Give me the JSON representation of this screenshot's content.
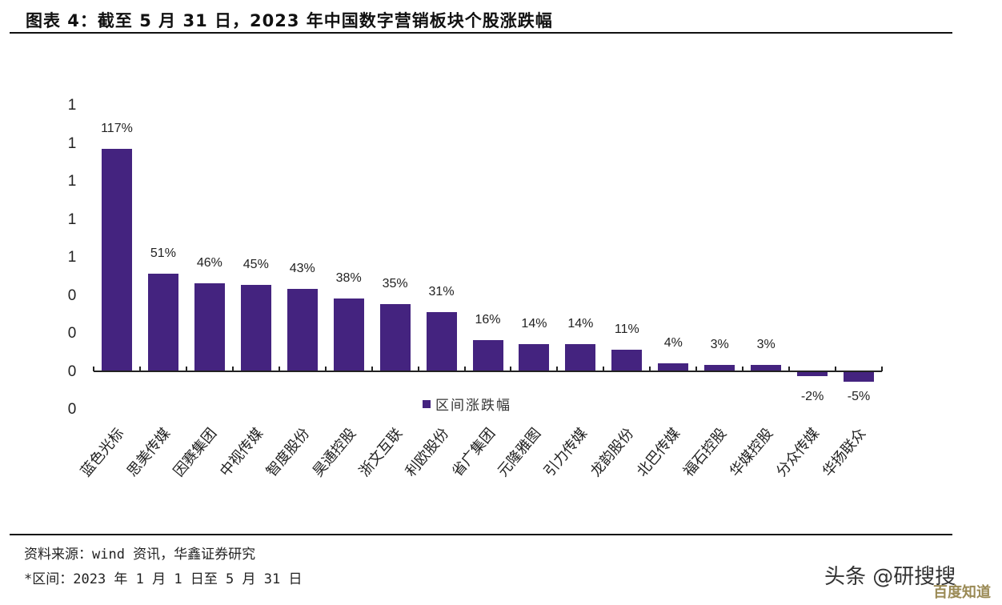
{
  "header": {
    "title": "图表 4：截至 5 月 31 日，2023 年中国数字营销板块个股涨跌幅"
  },
  "chart_data": {
    "type": "bar",
    "title": "图表 4：截至 5 月 31 日，2023 年中国数字营销板块个股涨跌幅",
    "xlabel": "",
    "ylabel": "",
    "categories": [
      "蓝色光标",
      "思美传媒",
      "因赛集团",
      "中视传媒",
      "智度股份",
      "昊通控股",
      "浙文互联",
      "利欧股份",
      "省广集团",
      "元隆雅图",
      "引力传媒",
      "龙韵股份",
      "北巴传媒",
      "福石控股",
      "华媒控股",
      "分众传媒",
      "华扬联众"
    ],
    "series": [
      {
        "name": "区间涨跌幅",
        "values": [
          117,
          51,
          46,
          45,
          43,
          38,
          35,
          31,
          16,
          14,
          14,
          11,
          4,
          3,
          3,
          -2,
          -5
        ],
        "color": "#44237f"
      }
    ],
    "value_labels": [
      "117%",
      "51%",
      "46%",
      "45%",
      "43%",
      "38%",
      "35%",
      "31%",
      "16%",
      "14%",
      "14%",
      "11%",
      "4%",
      "3%",
      "3%",
      "-2%",
      "-5%"
    ],
    "y_tick_labels": [
      "1",
      "1",
      "1",
      "1",
      "1",
      "0",
      "0",
      "0",
      "0"
    ],
    "legend": {
      "entries": [
        "区间涨跌幅"
      ],
      "position": "bottom-center-inside"
    },
    "grid": false,
    "unit": "%"
  },
  "legend": {
    "label": "区间涨跌幅"
  },
  "footer": {
    "source": "资料来源：wind 资讯，华鑫证券研究",
    "period": "*区间：2023 年 1 月 1 日至 5 月 31 日"
  },
  "watermark": {
    "text": "头条 @研搜搜",
    "sub": "百度知道"
  },
  "colors": {
    "bar": "#44237f",
    "text": "#222222"
  }
}
